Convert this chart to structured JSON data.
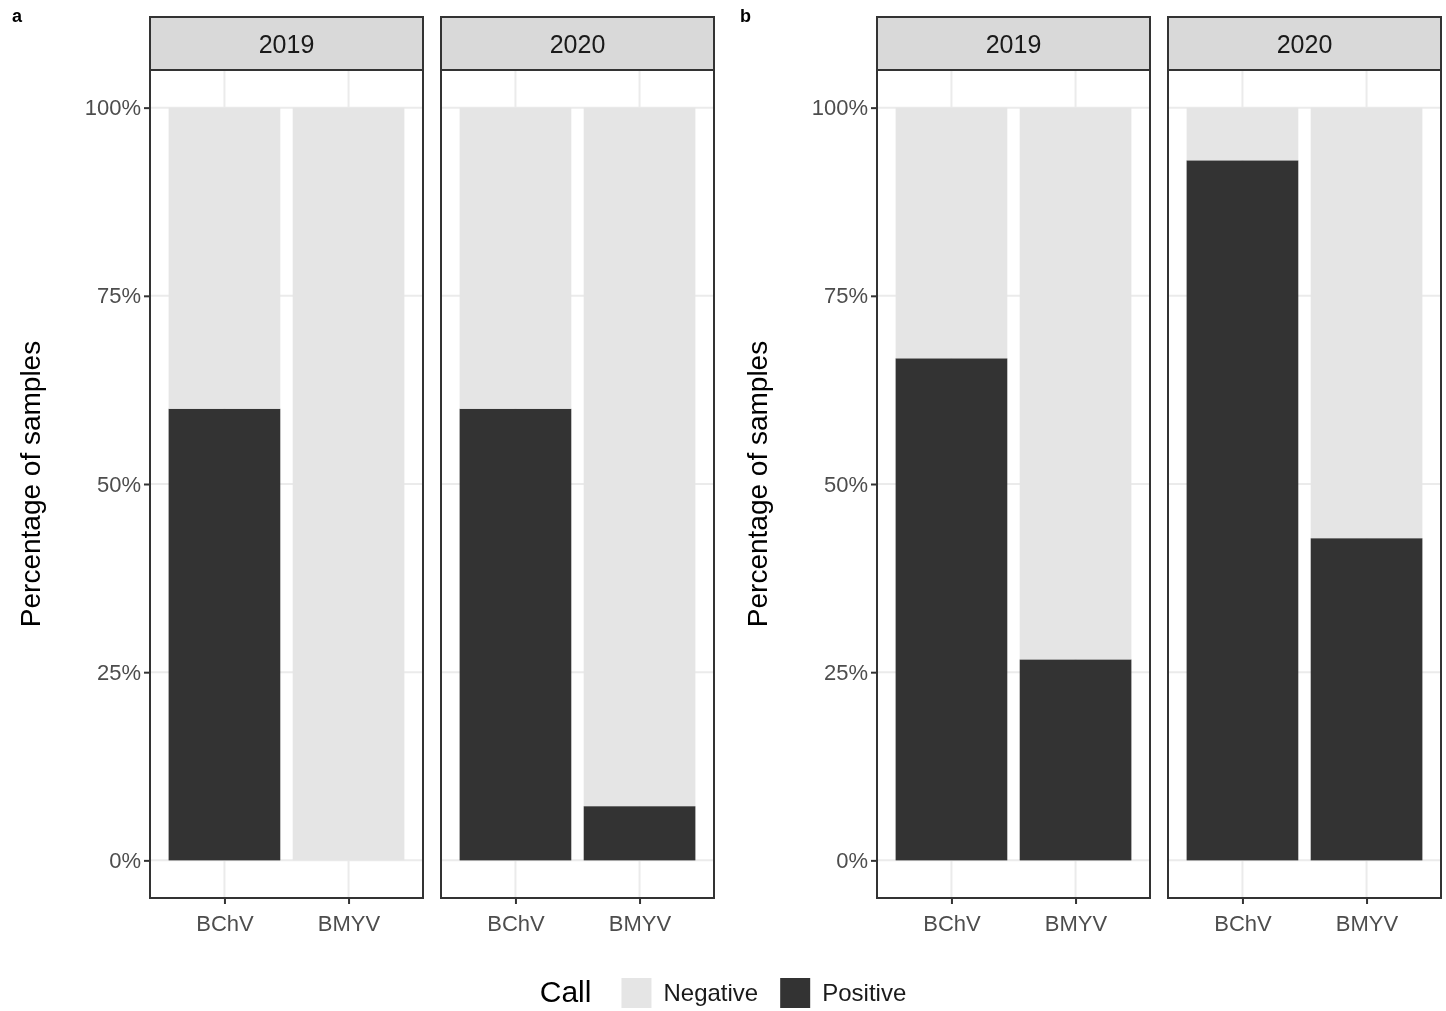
{
  "chart_data": [
    {
      "type": "bar",
      "stacked": true,
      "title": "2019",
      "ylabel": "Percentage of samples",
      "annotations": [
        "a"
      ],
      "categories": [
        "BChV",
        "BMYV"
      ],
      "legend": "bottom",
      "legend_title": "Call",
      "grid": true,
      "ylim": [
        -5,
        105
      ],
      "yticks": [
        {
          "value": 0,
          "label": "0%"
        },
        {
          "value": 25,
          "label": "25%"
        },
        {
          "value": 50,
          "label": "50%"
        },
        {
          "value": 75,
          "label": "75%"
        },
        {
          "value": 100,
          "label": "100%"
        }
      ],
      "series": [
        {
          "name": "Positive",
          "color": "#333333",
          "values": [
            60,
            0
          ]
        },
        {
          "name": "Negative",
          "color": "#e5e5e5",
          "values": [
            40,
            100
          ]
        }
      ]
    },
    {
      "type": "bar",
      "stacked": true,
      "title": "2020",
      "categories": [
        "BChV",
        "BMYV"
      ],
      "grid": true,
      "tick_labels": "x",
      "ylim": [
        -5,
        105
      ],
      "yticks": [
        {
          "value": 0,
          "label": null
        },
        {
          "value": 25,
          "label": null
        },
        {
          "value": 50,
          "label": null
        },
        {
          "value": 75,
          "label": null
        },
        {
          "value": 100,
          "label": null
        }
      ],
      "series": [
        {
          "color": "#333333",
          "values": [
            60,
            7.2
          ]
        },
        {
          "color": "#e5e5e5",
          "values": [
            40,
            92.8
          ]
        }
      ]
    },
    {
      "type": "bar",
      "stacked": true,
      "title": "2019",
      "ylabel": "Percentage of samples",
      "annotations": [
        "b"
      ],
      "categories": [
        "BChV",
        "BMYV"
      ],
      "grid": true,
      "ylim": [
        -5,
        105
      ],
      "yticks": [
        {
          "value": 0,
          "label": "0%"
        },
        {
          "value": 25,
          "label": "25%"
        },
        {
          "value": 50,
          "label": "50%"
        },
        {
          "value": 75,
          "label": "75%"
        },
        {
          "value": 100,
          "label": "100%"
        }
      ],
      "series": [
        {
          "color": "#333333",
          "values": [
            66.7,
            26.7
          ]
        },
        {
          "color": "#e5e5e5",
          "values": [
            33.3,
            73.3
          ]
        }
      ]
    },
    {
      "type": "bar",
      "stacked": true,
      "title": "2020",
      "categories": [
        "BChV",
        "BMYV"
      ],
      "grid": true,
      "tick_labels": "x",
      "ylim": [
        -5,
        105
      ],
      "yticks": [
        {
          "value": 0,
          "label": null
        },
        {
          "value": 25,
          "label": null
        },
        {
          "value": 50,
          "label": null
        },
        {
          "value": 75,
          "label": null
        },
        {
          "value": 100,
          "label": null
        }
      ],
      "series": [
        {
          "color": "#333333",
          "values": [
            93,
            42.8
          ]
        },
        {
          "color": "#e5e5e5",
          "values": [
            7,
            57.2
          ]
        }
      ]
    }
  ]
}
